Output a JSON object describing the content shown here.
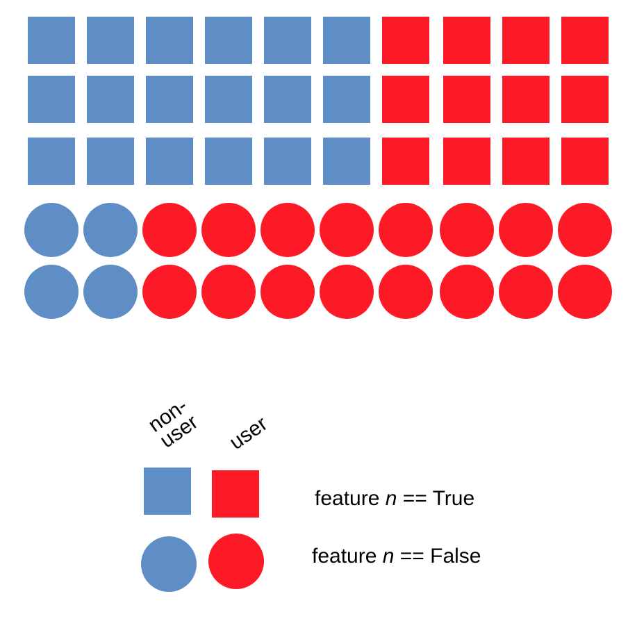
{
  "colors": {
    "non_user": "#5f8ec6",
    "user": "#fc1a27"
  },
  "grid": {
    "square_rows": [
      {
        "non_user_count": 6,
        "user_count": 4
      },
      {
        "non_user_count": 6,
        "user_count": 4
      },
      {
        "non_user_count": 6,
        "user_count": 4
      }
    ],
    "circle_rows": [
      {
        "non_user_count": 2,
        "user_count": 8
      },
      {
        "non_user_count": 2,
        "user_count": 8
      }
    ]
  },
  "legend": {
    "column_labels": {
      "non_user_line1": "non-",
      "non_user_line2": "user",
      "user": "user"
    },
    "true_row": {
      "prefix": "feature ",
      "variable": "n",
      "suffix": " == True"
    },
    "false_row": {
      "prefix": "feature ",
      "variable": "n",
      "suffix": " == False"
    }
  }
}
